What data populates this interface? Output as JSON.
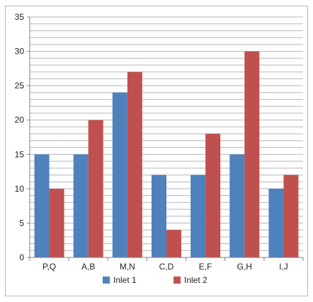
{
  "chart_data": {
    "type": "bar",
    "categories": [
      "P,Q",
      "A,B",
      "M,N",
      "C,D",
      "E,F",
      "G,H",
      "I,J"
    ],
    "series": [
      {
        "name": "Inlet 1",
        "color": "#4f81bd",
        "values": [
          15,
          15,
          24,
          12,
          12,
          15,
          10
        ]
      },
      {
        "name": "Inlet 2",
        "color": "#c0504d",
        "values": [
          10,
          20,
          27,
          4,
          18,
          30,
          12
        ]
      }
    ],
    "ylim": [
      0,
      35
    ],
    "yticks": [
      "0",
      "5",
      "10",
      "15",
      "20",
      "25",
      "30",
      "35"
    ],
    "grid": true,
    "legend": "bottom-center"
  }
}
